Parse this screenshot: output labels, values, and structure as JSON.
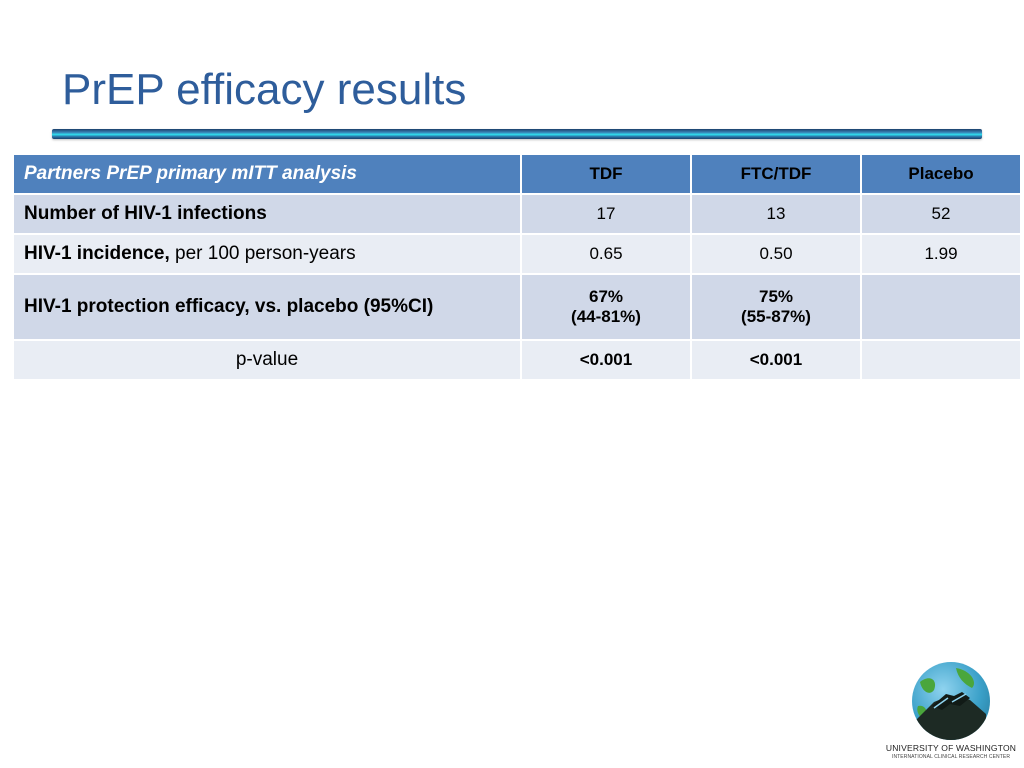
{
  "slide": {
    "title": "PrEP efficacy results"
  },
  "table": {
    "header": {
      "label": "Partners PrEP primary mITT analysis",
      "col1": "TDF",
      "col2": "FTC/TDF",
      "col3": "Placebo"
    },
    "rows": [
      {
        "label": "Number of HIV-1 infections",
        "c1": "17",
        "c2": "13",
        "c3": "52"
      },
      {
        "label_bold": "HIV-1 incidence,",
        "label_rest": " per 100 person-years",
        "c1": "0.65",
        "c2": "0.50",
        "c3": "1.99"
      },
      {
        "label": "HIV-1 protection efficacy, vs. placebo (95%CI)",
        "c1_line1": "67%",
        "c1_line2": "(44-81%)",
        "c2_line1": "75%",
        "c2_line2": "(55-87%)",
        "c3": ""
      },
      {
        "label": "p-value",
        "c1": "<0.001",
        "c2": "<0.001",
        "c3": ""
      }
    ]
  },
  "logo": {
    "line1": "UNIVERSITY OF WASHINGTON",
    "line2": "INTERNATIONAL CLINICAL RESEARCH CENTER"
  }
}
